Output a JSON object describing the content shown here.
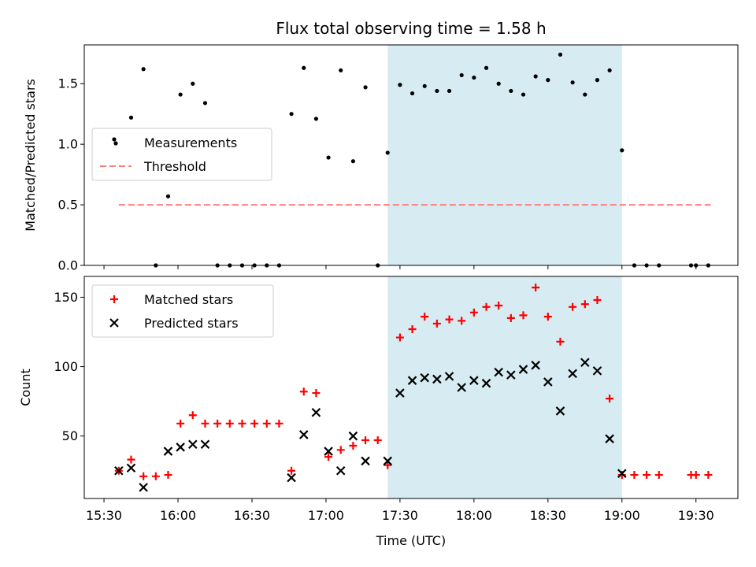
{
  "chart_data": {
    "title": "Flux total observing time = 1.58 h",
    "xlabel": "Time (UTC)",
    "x_ticks": [
      "15:30",
      "16:00",
      "16:30",
      "17:00",
      "17:30",
      "18:00",
      "18:30",
      "19:00",
      "19:30"
    ],
    "x_range": [
      "15:22",
      "19:47"
    ],
    "shaded_interval": [
      "17:25",
      "19:00"
    ],
    "shade_color": "#add8e6",
    "panels": [
      {
        "type": "scatter",
        "ylabel": "Matched/Predicted stars",
        "ylim": [
          0,
          1.82
        ],
        "y_ticks": [
          "0.0",
          "0.5",
          "1.0",
          "1.5"
        ],
        "legend_position": "center-left",
        "series": [
          {
            "name": "Measurements",
            "color": "#000000",
            "marker": "dot",
            "points": [
              [
                "15:36",
                1.04
              ],
              [
                "15:37",
                1.01
              ],
              [
                "15:41",
                1.22
              ],
              [
                "15:46",
                1.62
              ],
              [
                "15:51",
                0.0
              ],
              [
                "15:56",
                0.57
              ],
              [
                "16:01",
                1.41
              ],
              [
                "16:06",
                1.5
              ],
              [
                "16:11",
                1.34
              ],
              [
                "16:16",
                0.0
              ],
              [
                "16:21",
                0.0
              ],
              [
                "16:26",
                0.0
              ],
              [
                "16:31",
                0.0
              ],
              [
                "16:36",
                0.0
              ],
              [
                "16:41",
                0.0
              ],
              [
                "16:46",
                1.25
              ],
              [
                "16:51",
                1.63
              ],
              [
                "16:56",
                1.21
              ],
              [
                "17:01",
                0.89
              ],
              [
                "17:06",
                1.61
              ],
              [
                "17:11",
                0.86
              ],
              [
                "17:16",
                1.47
              ],
              [
                "17:21",
                0.0
              ],
              [
                "17:25",
                0.93
              ],
              [
                "17:30",
                1.49
              ],
              [
                "17:35",
                1.42
              ],
              [
                "17:40",
                1.48
              ],
              [
                "17:45",
                1.44
              ],
              [
                "17:50",
                1.44
              ],
              [
                "17:55",
                1.57
              ],
              [
                "18:00",
                1.55
              ],
              [
                "18:05",
                1.63
              ],
              [
                "18:10",
                1.5
              ],
              [
                "18:15",
                1.44
              ],
              [
                "18:20",
                1.41
              ],
              [
                "18:25",
                1.56
              ],
              [
                "18:30",
                1.53
              ],
              [
                "18:35",
                1.74
              ],
              [
                "18:40",
                1.51
              ],
              [
                "18:45",
                1.41
              ],
              [
                "18:50",
                1.53
              ],
              [
                "18:55",
                1.61
              ],
              [
                "19:00",
                0.95
              ],
              [
                "19:05",
                0.0
              ],
              [
                "19:10",
                0.0
              ],
              [
                "19:15",
                0.0
              ],
              [
                "19:28",
                0.0
              ],
              [
                "19:30",
                0.0
              ],
              [
                "19:35",
                0.0
              ]
            ]
          },
          {
            "name": "Threshold",
            "color": "#ff7f7f",
            "style": "dashed",
            "points": [
              [
                "15:36",
                0.5
              ],
              [
                "19:36",
                0.5
              ]
            ]
          }
        ]
      },
      {
        "type": "scatter",
        "ylabel": "Count",
        "ylim": [
          5,
          165
        ],
        "y_ticks": [
          "50",
          "100",
          "150"
        ],
        "legend_position": "upper-left",
        "series": [
          {
            "name": "Matched stars",
            "color": "#ff0000",
            "marker": "plus",
            "points": [
              [
                "15:36",
                25
              ],
              [
                "15:41",
                33
              ],
              [
                "15:46",
                21
              ],
              [
                "15:51",
                21
              ],
              [
                "15:56",
                22
              ],
              [
                "16:01",
                59
              ],
              [
                "16:06",
                65
              ],
              [
                "16:11",
                59
              ],
              [
                "16:16",
                59
              ],
              [
                "16:21",
                59
              ],
              [
                "16:26",
                59
              ],
              [
                "16:31",
                59
              ],
              [
                "16:36",
                59
              ],
              [
                "16:41",
                59
              ],
              [
                "16:46",
                25
              ],
              [
                "16:51",
                82
              ],
              [
                "16:56",
                81
              ],
              [
                "17:01",
                35
              ],
              [
                "17:06",
                40
              ],
              [
                "17:11",
                43
              ],
              [
                "17:16",
                47
              ],
              [
                "17:21",
                47
              ],
              [
                "17:25",
                29
              ],
              [
                "17:30",
                121
              ],
              [
                "17:35",
                127
              ],
              [
                "17:40",
                136
              ],
              [
                "17:45",
                131
              ],
              [
                "17:50",
                134
              ],
              [
                "17:55",
                133
              ],
              [
                "18:00",
                139
              ],
              [
                "18:05",
                143
              ],
              [
                "18:10",
                144
              ],
              [
                "18:15",
                135
              ],
              [
                "18:20",
                137
              ],
              [
                "18:25",
                157
              ],
              [
                "18:30",
                136
              ],
              [
                "18:35",
                118
              ],
              [
                "18:40",
                143
              ],
              [
                "18:45",
                145
              ],
              [
                "18:50",
                148
              ],
              [
                "18:55",
                77
              ],
              [
                "19:00",
                22
              ],
              [
                "19:05",
                22
              ],
              [
                "19:10",
                22
              ],
              [
                "19:15",
                22
              ],
              [
                "19:28",
                22
              ],
              [
                "19:30",
                22
              ],
              [
                "19:35",
                22
              ]
            ]
          },
          {
            "name": "Predicted stars",
            "color": "#000000",
            "marker": "x",
            "points": [
              [
                "15:36",
                25
              ],
              [
                "15:41",
                27
              ],
              [
                "15:46",
                13
              ],
              [
                "15:56",
                39
              ],
              [
                "16:01",
                42
              ],
              [
                "16:06",
                44
              ],
              [
                "16:11",
                44
              ],
              [
                "16:46",
                20
              ],
              [
                "16:51",
                51
              ],
              [
                "16:56",
                67
              ],
              [
                "17:01",
                39
              ],
              [
                "17:06",
                25
              ],
              [
                "17:11",
                50
              ],
              [
                "17:16",
                32
              ],
              [
                "17:25",
                32
              ],
              [
                "17:30",
                81
              ],
              [
                "17:35",
                90
              ],
              [
                "17:40",
                92
              ],
              [
                "17:45",
                91
              ],
              [
                "17:50",
                93
              ],
              [
                "17:55",
                85
              ],
              [
                "18:00",
                90
              ],
              [
                "18:05",
                88
              ],
              [
                "18:10",
                96
              ],
              [
                "18:15",
                94
              ],
              [
                "18:20",
                98
              ],
              [
                "18:25",
                101
              ],
              [
                "18:30",
                89
              ],
              [
                "18:35",
                68
              ],
              [
                "18:40",
                95
              ],
              [
                "18:45",
                103
              ],
              [
                "18:50",
                97
              ],
              [
                "18:55",
                48
              ],
              [
                "19:00",
                23
              ]
            ]
          }
        ]
      }
    ]
  }
}
